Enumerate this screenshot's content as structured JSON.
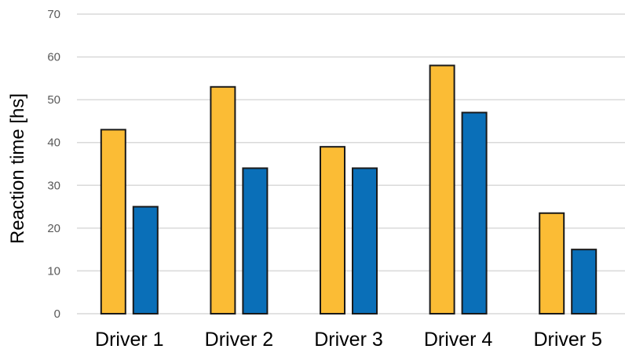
{
  "chart_data": {
    "type": "bar",
    "title": "",
    "xlabel": "",
    "ylabel": "Reaction time [hs]",
    "categories": [
      "Driver 1",
      "Driver 2",
      "Driver 3",
      "Driver 4",
      "Driver 5"
    ],
    "series": [
      {
        "color": "#fbbc35",
        "values": [
          43,
          53,
          39,
          58,
          23.5
        ]
      },
      {
        "color": "#0a6fb8",
        "values": [
          25,
          34,
          34,
          47,
          15
        ]
      }
    ],
    "ylim": [
      0,
      70
    ],
    "yticks": [
      0,
      10,
      20,
      30,
      40,
      50,
      60,
      70
    ],
    "grid": true,
    "legend": "none"
  }
}
